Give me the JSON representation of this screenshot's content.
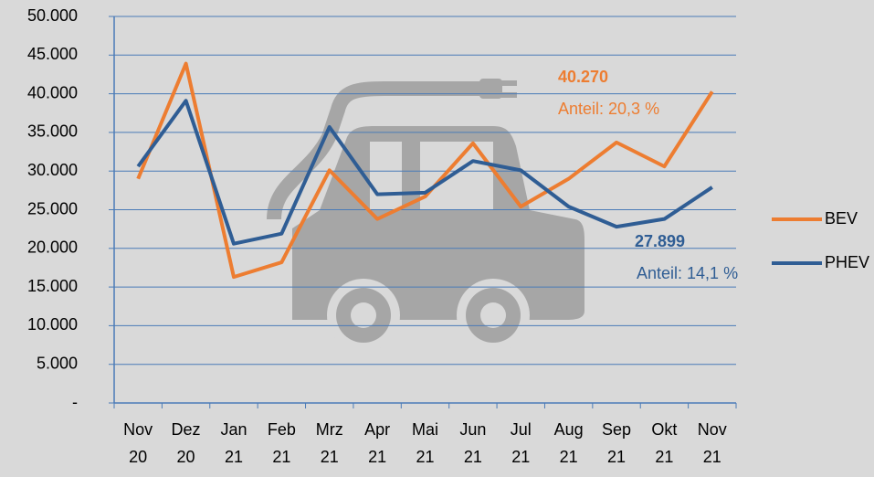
{
  "chart_data": {
    "type": "line",
    "categories": [
      "Nov 20",
      "Dez 20",
      "Jan 21",
      "Feb 21",
      "Mrz 21",
      "Apr 21",
      "Mai 21",
      "Jun 21",
      "Jul 21",
      "Aug 21",
      "Sep 21",
      "Okt 21",
      "Nov 21"
    ],
    "series": [
      {
        "name": "BEV",
        "color": "#ed7d31",
        "values": [
          29000,
          43900,
          16300,
          18200,
          30100,
          23800,
          26700,
          33600,
          25400,
          29000,
          33700,
          30600,
          40270
        ]
      },
      {
        "name": "PHEV",
        "color": "#2f5d94",
        "values": [
          30600,
          39100,
          20600,
          21900,
          35700,
          27000,
          27200,
          31300,
          30100,
          25400,
          22800,
          23800,
          27899
        ]
      }
    ],
    "ylim": [
      0,
      50000
    ],
    "yticks": [
      {
        "value": 0,
        "label": "-"
      },
      {
        "value": 5000,
        "label": "5.000"
      },
      {
        "value": 10000,
        "label": "10.000"
      },
      {
        "value": 15000,
        "label": "15.000"
      },
      {
        "value": 20000,
        "label": "20.000"
      },
      {
        "value": 25000,
        "label": "25.000"
      },
      {
        "value": 30000,
        "label": "30.000"
      },
      {
        "value": 35000,
        "label": "35.000"
      },
      {
        "value": 40000,
        "label": "40.000"
      },
      {
        "value": 45000,
        "label": "45.000"
      },
      {
        "value": 50000,
        "label": "50.000"
      }
    ],
    "grid": true,
    "legend": "right",
    "annotations": [
      "40.270",
      "Anteil: 20,3 %",
      "27.899",
      "Anteil: 14,1 %"
    ]
  }
}
